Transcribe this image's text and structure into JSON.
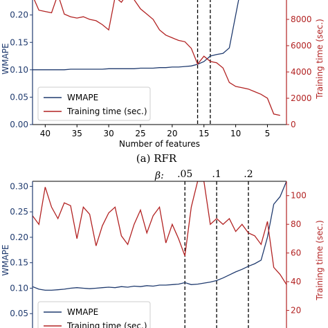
{
  "caption_a": "(a) RFR",
  "beta_label": "β:",
  "chart_data": [
    {
      "type": "line",
      "xlabel": "Number of features",
      "ylabel_left": "WMAPE",
      "ylabel_right": "Training time (sec.)",
      "x_reversed": true,
      "xlim": [
        42,
        2
      ],
      "ylim_left": [
        0.0,
        0.24
      ],
      "ylim_right": [
        0,
        10000
      ],
      "xticks": [
        40,
        35,
        30,
        25,
        20,
        15,
        10,
        5
      ],
      "yticks_left": [
        "0.00",
        "0.05",
        "0.10",
        "0.15",
        "0.20"
      ],
      "yticks_right": [
        "0",
        "2000",
        "4000",
        "6000",
        "8000"
      ],
      "vlines": [
        16,
        14
      ],
      "legend_position": "lower-left",
      "series": [
        {
          "name": "WMAPE",
          "axis": "left",
          "color": "#1f3a6e",
          "x": [
            42,
            41,
            40,
            39,
            38,
            37,
            36,
            35,
            34,
            33,
            32,
            31,
            30,
            29,
            28,
            27,
            26,
            25,
            24,
            23,
            22,
            21,
            20,
            19,
            18,
            17,
            16,
            15,
            14,
            13,
            12,
            11,
            10,
            9
          ],
          "y": [
            0.1,
            0.1,
            0.1,
            0.1,
            0.1,
            0.1,
            0.101,
            0.101,
            0.101,
            0.101,
            0.101,
            0.101,
            0.102,
            0.102,
            0.102,
            0.102,
            0.102,
            0.103,
            0.103,
            0.103,
            0.104,
            0.104,
            0.105,
            0.105,
            0.106,
            0.107,
            0.11,
            0.115,
            0.125,
            0.128,
            0.13,
            0.14,
            0.2,
            0.26
          ]
        },
        {
          "name": "Training time (sec.)",
          "axis": "right",
          "color": "#b22222",
          "x": [
            42,
            41,
            40,
            39,
            38,
            37,
            36,
            35,
            34,
            33,
            32,
            31,
            30,
            29,
            28,
            27,
            26,
            25,
            24,
            23,
            22,
            21,
            20,
            19,
            18,
            17,
            16,
            15,
            14,
            13,
            12,
            11,
            10,
            9,
            8,
            7,
            6,
            5,
            4,
            3
          ],
          "y": [
            9800,
            8700,
            8600,
            8500,
            9900,
            8400,
            8200,
            8100,
            8200,
            8000,
            7900,
            7600,
            7200,
            9700,
            9300,
            10000,
            9500,
            8800,
            8400,
            8000,
            7200,
            6800,
            6600,
            6400,
            6300,
            5800,
            4600,
            5200,
            4800,
            4700,
            4300,
            3200,
            2900,
            2800,
            2700,
            2500,
            2300,
            2000,
            800,
            700
          ]
        }
      ]
    },
    {
      "type": "line",
      "ylabel_left": "WMAPE",
      "ylabel_right": "Training time (sec.)",
      "x_reversed": true,
      "xlim": [
        42,
        2
      ],
      "ylim_left": [
        0.0,
        0.31
      ],
      "ylim_right": [
        0,
        110
      ],
      "yticks_left": [
        "0.05",
        "0.10",
        "0.15",
        "0.20",
        "0.25",
        "0.30"
      ],
      "yticks_right": [
        "20",
        "40",
        "60",
        "80",
        "100"
      ],
      "vlines": [
        {
          "x": 18,
          "label": ".05"
        },
        {
          "x": 13,
          "label": ".1"
        },
        {
          "x": 8,
          "label": ".2"
        }
      ],
      "legend_position": "lower-left",
      "series": [
        {
          "name": "WMAPE",
          "axis": "left",
          "color": "#1f3a6e",
          "x": [
            42,
            41,
            40,
            39,
            38,
            37,
            36,
            35,
            34,
            33,
            32,
            31,
            30,
            29,
            28,
            27,
            26,
            25,
            24,
            23,
            22,
            21,
            20,
            19,
            18,
            17,
            16,
            15,
            14,
            13,
            12,
            11,
            10,
            9,
            8,
            7,
            6,
            5,
            4,
            3,
            2
          ],
          "y": [
            0.103,
            0.098,
            0.096,
            0.096,
            0.097,
            0.098,
            0.1,
            0.101,
            0.1,
            0.099,
            0.1,
            0.101,
            0.102,
            0.101,
            0.103,
            0.102,
            0.104,
            0.103,
            0.105,
            0.104,
            0.106,
            0.106,
            0.107,
            0.108,
            0.111,
            0.107,
            0.108,
            0.11,
            0.112,
            0.115,
            0.12,
            0.126,
            0.132,
            0.137,
            0.143,
            0.148,
            0.155,
            0.2,
            0.265,
            0.28,
            0.31
          ]
        },
        {
          "name": "Training time (sec.)",
          "axis": "right",
          "color": "#b22222",
          "x": [
            42,
            41,
            40,
            39,
            38,
            37,
            36,
            35,
            34,
            33,
            32,
            31,
            30,
            29,
            28,
            27,
            26,
            25,
            24,
            23,
            22,
            21,
            20,
            19,
            18,
            17,
            16,
            15,
            14,
            13,
            12,
            11,
            10,
            9,
            8,
            7,
            6,
            5,
            4,
            3,
            2
          ],
          "y": [
            86,
            80,
            106,
            92,
            84,
            95,
            93,
            70,
            92,
            87,
            65,
            79,
            88,
            92,
            72,
            66,
            80,
            90,
            74,
            86,
            92,
            67,
            80,
            70,
            58,
            92,
            110,
            110,
            80,
            84,
            80,
            84,
            75,
            80,
            74,
            72,
            66,
            82,
            50,
            45,
            38
          ]
        }
      ]
    }
  ]
}
